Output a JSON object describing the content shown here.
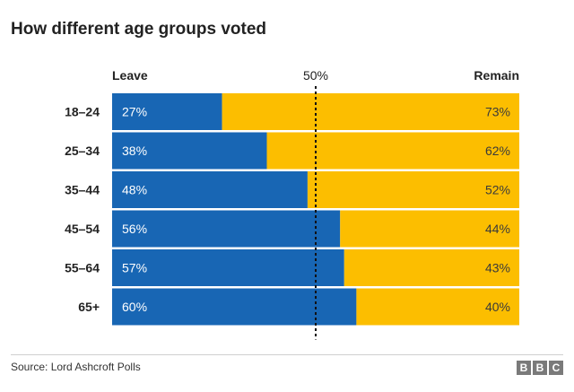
{
  "title": "How different age groups voted",
  "chart_data": {
    "type": "bar",
    "orientation": "horizontal",
    "stacked": true,
    "title": "How different age groups voted",
    "categories": [
      "18–24",
      "25–34",
      "35–44",
      "45–54",
      "55–64",
      "65+"
    ],
    "series": [
      {
        "name": "Leave",
        "values": [
          27,
          38,
          48,
          56,
          57,
          60
        ],
        "labels": [
          "27%",
          "38%",
          "48%",
          "56%",
          "57%",
          "60%"
        ],
        "color": "#1866b4"
      },
      {
        "name": "Remain",
        "values": [
          73,
          62,
          52,
          44,
          43,
          40
        ],
        "labels": [
          "73%",
          "62%",
          "52%",
          "44%",
          "43%",
          "40%"
        ],
        "color": "#fcbe00"
      }
    ],
    "reference_line": {
      "value": 50,
      "label": "50%"
    },
    "xlim": [
      0,
      100
    ]
  },
  "legend": {
    "leave": "Leave",
    "remain": "Remain"
  },
  "footer": {
    "source": "Source: Lord Ashcroft Polls",
    "logo": [
      "B",
      "B",
      "C"
    ]
  }
}
